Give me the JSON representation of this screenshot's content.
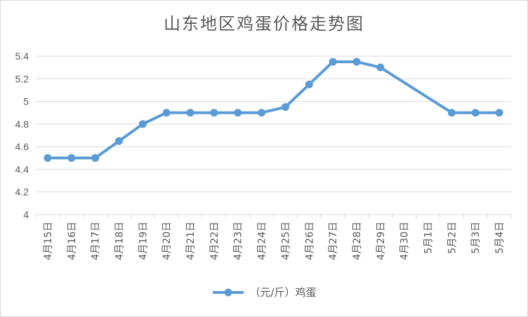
{
  "chart_data": {
    "type": "line",
    "title": "山东地区鸡蛋价格走势图",
    "categories": [
      "4月15日",
      "4月16日",
      "4月17日",
      "4月18日",
      "4月19日",
      "4月20日",
      "4月21日",
      "4月22日",
      "4月23日",
      "4月24日",
      "4月25日",
      "4月26日",
      "4月27日",
      "4月28日",
      "4月29日",
      "4月30日",
      "5月1日",
      "5月2日",
      "5月3日",
      "5月4日"
    ],
    "series": [
      {
        "name": "（元/斤）鸡蛋",
        "values": [
          4.5,
          4.5,
          4.5,
          4.65,
          4.8,
          4.9,
          4.9,
          4.9,
          4.9,
          4.9,
          4.95,
          5.15,
          5.35,
          5.35,
          5.3,
          null,
          null,
          4.9,
          4.9,
          4.9
        ],
        "color": "#5b9bd5"
      }
    ],
    "y_ticks": [
      "4",
      "4.2",
      "4.4",
      "4.6",
      "4.8",
      "5",
      "5.2",
      "5.4"
    ],
    "ylim": [
      4,
      5.4
    ],
    "grid": true,
    "legend_position": "bottom"
  },
  "colors": {
    "line": "#5b9bd5",
    "grid": "#d9d9d9",
    "text": "#595959"
  }
}
